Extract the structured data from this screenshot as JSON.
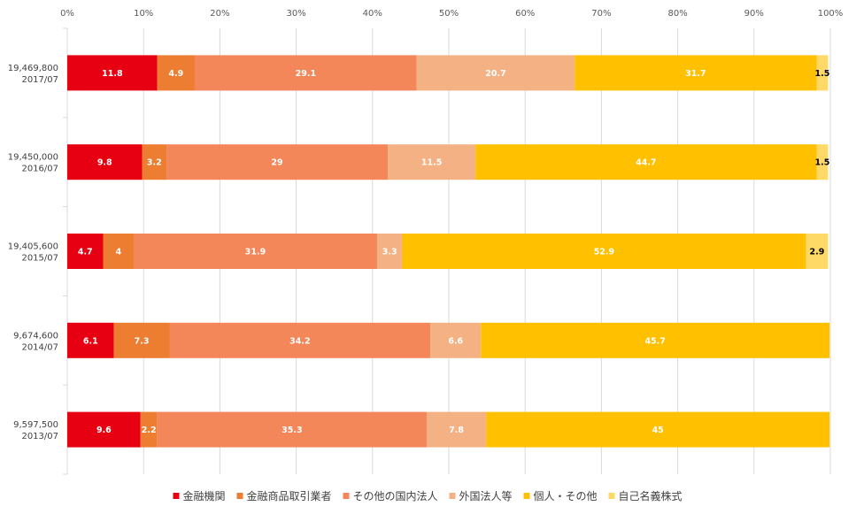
{
  "chart_data": {
    "type": "bar",
    "orientation": "horizontal",
    "stacked": "percent",
    "categories": [
      [
        "19,469,800",
        "2017/07"
      ],
      [
        "19,450,000",
        "2016/07"
      ],
      [
        "19,405,600",
        "2015/07"
      ],
      [
        "9,674,600",
        "2014/07"
      ],
      [
        "9,597,500",
        "2013/07"
      ]
    ],
    "series": [
      {
        "name": "金融機関",
        "color": "#e60012",
        "label_color": "#ffffff",
        "values": [
          11.8,
          9.8,
          4.7,
          6.1,
          9.6
        ]
      },
      {
        "name": "金融商品取引業者",
        "color": "#ed7d31",
        "label_color": "#ffffff",
        "values": [
          4.9,
          3.2,
          4,
          7.3,
          2.2
        ]
      },
      {
        "name": "その他の国内法人",
        "color": "#f4875a",
        "label_color": "#ffffff",
        "values": [
          29.1,
          29,
          31.9,
          34.2,
          35.3
        ]
      },
      {
        "name": "外国法人等",
        "color": "#f4b183",
        "label_color": "#ffffff",
        "values": [
          20.7,
          11.5,
          3.3,
          6.6,
          7.8
        ]
      },
      {
        "name": "個人・その他",
        "color": "#ffc000",
        "label_color": "#ffffff",
        "values": [
          31.7,
          44.7,
          52.9,
          45.7,
          45
        ]
      },
      {
        "name": "自己名義株式",
        "color": "#ffd966",
        "label_color": "#000000",
        "values": [
          1.5,
          1.5,
          2.9,
          null,
          null
        ]
      }
    ],
    "xlim": [
      0,
      100
    ],
    "x_ticks": [
      "0%",
      "10%",
      "20%",
      "30%",
      "40%",
      "50%",
      "60%",
      "70%",
      "80%",
      "90%",
      "100%"
    ],
    "grid": "vertical",
    "legend_position": "bottom"
  }
}
